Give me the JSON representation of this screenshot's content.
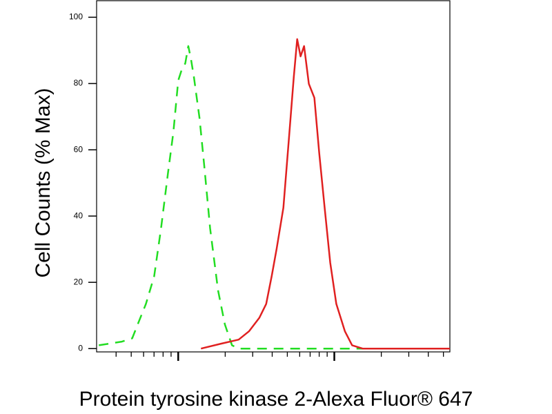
{
  "chart_data": {
    "type": "line",
    "ylabel": "Cell Counts (% Max)",
    "xlabel": "Protein tyrosine kinase 2-Alexa Fluor® 647",
    "xscale": "log",
    "xlim": [
      3,
      550
    ],
    "xticks": [
      4,
      5,
      6,
      7,
      8,
      9,
      10,
      20,
      30,
      40,
      50,
      60,
      70,
      80,
      90,
      100,
      200,
      300,
      400,
      500
    ],
    "xticks_major": [
      10,
      100
    ],
    "ylim": [
      -1,
      105
    ],
    "yticks": [
      0,
      20,
      40,
      60,
      80,
      100
    ],
    "series": [
      {
        "color": "#22dd22",
        "dash": true,
        "x": [
          3.1,
          4.36,
          5.07,
          5.61,
          6.21,
          7.01,
          7.76,
          8.59,
          9.31,
          10,
          10.5,
          11.1,
          11.6,
          12.1,
          12.6,
          13.7,
          14.7,
          16.0,
          18.0,
          19.9,
          22.1,
          24.4,
          42.7,
          117,
          550
        ],
        "values": [
          1.0,
          2.1,
          3.1,
          8.3,
          13.5,
          21.8,
          36.3,
          52.9,
          65.4,
          80.9,
          84,
          86.1,
          91.3,
          87.1,
          82,
          69.5,
          55,
          36.3,
          17.6,
          7.3,
          1,
          0,
          0,
          0,
          0
        ]
      },
      {
        "color": "#e02020",
        "dash": false,
        "x": [
          14.0,
          18.9,
          24.4,
          28.4,
          33.1,
          36.6,
          39.7,
          42.7,
          47.2,
          51.2,
          55.0,
          57.8,
          60.8,
          64.0,
          68.7,
          74.5,
          80.0,
          86.7,
          94.2,
          103,
          117,
          130,
          152,
          550
        ],
        "values": [
          0,
          1.5,
          2.7,
          5.2,
          9.3,
          13.5,
          21.8,
          30.1,
          42.5,
          63.3,
          82,
          93.4,
          88.2,
          91.3,
          79.9,
          75.7,
          59.1,
          42.5,
          25.9,
          13.5,
          5.2,
          1.0,
          0,
          0
        ]
      }
    ]
  }
}
